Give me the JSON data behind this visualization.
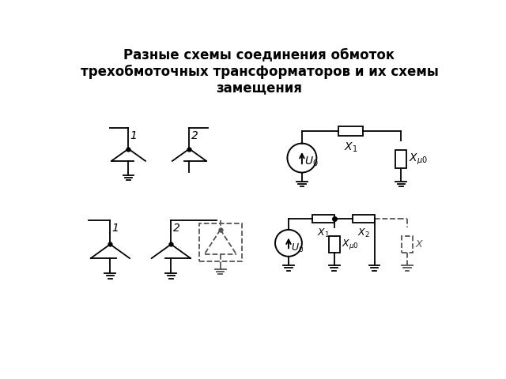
{
  "title": "Разные схемы соединения обмоток\nтрехобмоточных трансформаторов и их схемы\nзамещения",
  "title_fontsize": 12,
  "bg_color": "#ffffff",
  "line_color": "#000000",
  "dashed_color": "#555555"
}
